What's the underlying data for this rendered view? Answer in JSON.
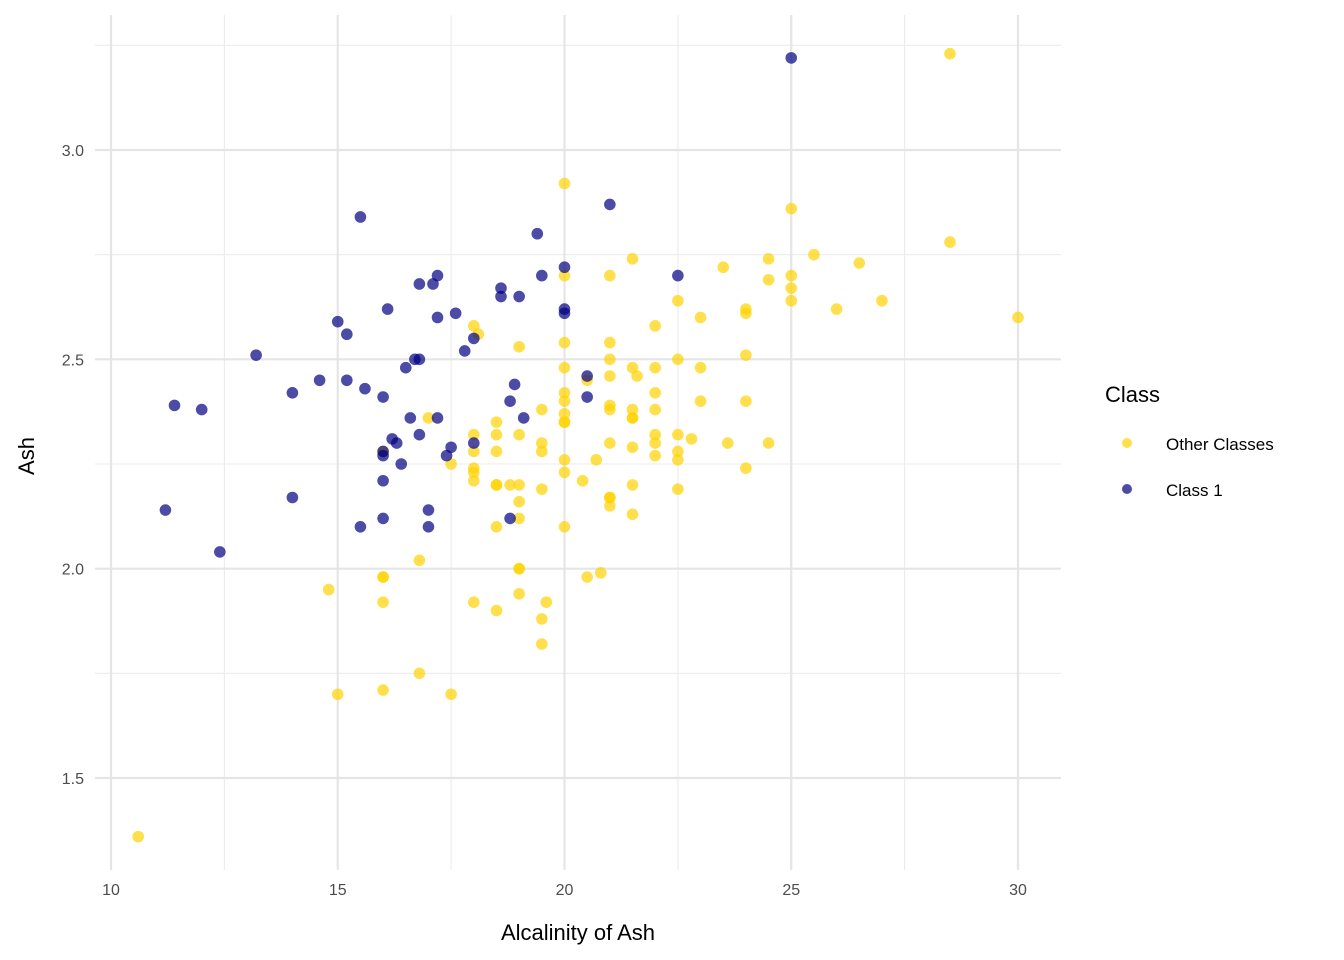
{
  "chart_data": {
    "type": "scatter",
    "title": "",
    "xlabel": "Alcalinity of Ash",
    "ylabel": "Ash",
    "xlim": [
      9.5,
      31
    ],
    "ylim": [
      1.27,
      3.32
    ],
    "x_ticks": [
      10,
      15,
      20,
      25,
      30
    ],
    "x_tick_labels": [
      "10",
      "15",
      "20",
      "25",
      "30"
    ],
    "y_ticks": [
      1.5,
      2.0,
      2.5,
      3.0
    ],
    "y_tick_labels": [
      "1.5",
      "2.0",
      "2.5",
      "3.0"
    ],
    "x_minor": [
      12.5,
      17.5,
      22.5,
      27.5
    ],
    "y_minor": [
      1.75,
      2.25,
      2.75,
      3.25
    ],
    "grid": true,
    "legend": {
      "title": "Class",
      "position": "right",
      "entries": [
        {
          "label": "Other Classes",
          "color": "#FFD300"
        },
        {
          "label": "Class 1",
          "color": "#000080"
        }
      ]
    },
    "series": [
      {
        "name": "Other Classes",
        "color": "#FFD300",
        "points": [
          [
            10.6,
            1.36
          ],
          [
            14.8,
            1.95
          ],
          [
            15.0,
            1.7
          ],
          [
            16.0,
            1.98
          ],
          [
            16.0,
            1.98
          ],
          [
            16.0,
            1.92
          ],
          [
            16.0,
            1.71
          ],
          [
            16.0,
            2.28
          ],
          [
            16.8,
            2.02
          ],
          [
            16.8,
            1.75
          ],
          [
            17.0,
            2.36
          ],
          [
            17.5,
            2.25
          ],
          [
            17.5,
            1.7
          ],
          [
            18.0,
            2.58
          ],
          [
            18.1,
            2.56
          ],
          [
            18.0,
            2.32
          ],
          [
            18.0,
            2.28
          ],
          [
            18.0,
            2.24
          ],
          [
            18.0,
            2.23
          ],
          [
            18.0,
            2.21
          ],
          [
            18.0,
            1.92
          ],
          [
            18.5,
            2.35
          ],
          [
            18.5,
            2.32
          ],
          [
            18.5,
            2.28
          ],
          [
            18.5,
            2.2
          ],
          [
            18.5,
            2.2
          ],
          [
            18.5,
            2.1
          ],
          [
            18.5,
            1.9
          ],
          [
            18.8,
            2.2
          ],
          [
            19.0,
            2.53
          ],
          [
            19.0,
            2.32
          ],
          [
            19.0,
            2.2
          ],
          [
            19.0,
            2.16
          ],
          [
            19.0,
            2.12
          ],
          [
            19.0,
            2.0
          ],
          [
            19.0,
            2.0
          ],
          [
            19.0,
            1.94
          ],
          [
            19.5,
            2.38
          ],
          [
            19.5,
            2.3
          ],
          [
            19.5,
            2.28
          ],
          [
            19.5,
            2.19
          ],
          [
            19.5,
            1.88
          ],
          [
            19.5,
            1.82
          ],
          [
            19.6,
            1.92
          ],
          [
            20.0,
            2.92
          ],
          [
            20.0,
            2.7
          ],
          [
            20.0,
            2.54
          ],
          [
            20.0,
            2.48
          ],
          [
            20.0,
            2.42
          ],
          [
            20.0,
            2.4
          ],
          [
            20.0,
            2.37
          ],
          [
            20.0,
            2.35
          ],
          [
            20.0,
            2.35
          ],
          [
            20.0,
            2.26
          ],
          [
            20.0,
            2.23
          ],
          [
            20.0,
            2.1
          ],
          [
            20.4,
            2.21
          ],
          [
            20.5,
            2.45
          ],
          [
            20.5,
            1.98
          ],
          [
            20.8,
            1.99
          ],
          [
            20.7,
            2.26
          ],
          [
            21.0,
            2.7
          ],
          [
            21.0,
            2.54
          ],
          [
            21.0,
            2.5
          ],
          [
            21.0,
            2.46
          ],
          [
            21.0,
            2.39
          ],
          [
            21.0,
            2.38
          ],
          [
            21.0,
            2.3
          ],
          [
            21.0,
            2.17
          ],
          [
            21.0,
            2.17
          ],
          [
            21.0,
            2.15
          ],
          [
            21.5,
            2.74
          ],
          [
            21.5,
            2.48
          ],
          [
            21.5,
            2.38
          ],
          [
            21.5,
            2.36
          ],
          [
            21.5,
            2.36
          ],
          [
            21.5,
            2.29
          ],
          [
            21.5,
            2.2
          ],
          [
            21.5,
            2.13
          ],
          [
            21.6,
            2.46
          ],
          [
            22.0,
            2.58
          ],
          [
            22.0,
            2.48
          ],
          [
            22.0,
            2.42
          ],
          [
            22.0,
            2.38
          ],
          [
            22.0,
            2.32
          ],
          [
            22.0,
            2.3
          ],
          [
            22.0,
            2.27
          ],
          [
            22.5,
            2.64
          ],
          [
            22.5,
            2.5
          ],
          [
            22.5,
            2.32
          ],
          [
            22.5,
            2.28
          ],
          [
            22.5,
            2.26
          ],
          [
            22.5,
            2.19
          ],
          [
            22.8,
            2.31
          ],
          [
            23.0,
            2.6
          ],
          [
            23.0,
            2.48
          ],
          [
            23.0,
            2.4
          ],
          [
            23.5,
            2.72
          ],
          [
            23.6,
            2.3
          ],
          [
            24.0,
            2.62
          ],
          [
            24.0,
            2.61
          ],
          [
            24.0,
            2.51
          ],
          [
            24.0,
            2.4
          ],
          [
            24.0,
            2.24
          ],
          [
            24.5,
            2.74
          ],
          [
            24.5,
            2.69
          ],
          [
            24.5,
            2.3
          ],
          [
            25.0,
            2.86
          ],
          [
            25.0,
            2.7
          ],
          [
            25.0,
            2.67
          ],
          [
            25.0,
            2.64
          ],
          [
            25.5,
            2.75
          ],
          [
            26.0,
            2.62
          ],
          [
            26.5,
            2.73
          ],
          [
            27.0,
            2.64
          ],
          [
            28.5,
            3.23
          ],
          [
            28.5,
            2.78
          ],
          [
            30.0,
            2.6
          ]
        ]
      },
      {
        "name": "Class 1",
        "color": "#000080",
        "points": [
          [
            11.2,
            2.14
          ],
          [
            11.4,
            2.39
          ],
          [
            12.0,
            2.38
          ],
          [
            12.4,
            2.04
          ],
          [
            13.2,
            2.51
          ],
          [
            14.0,
            2.42
          ],
          [
            14.0,
            2.17
          ],
          [
            14.6,
            2.45
          ],
          [
            15.0,
            2.59
          ],
          [
            15.2,
            2.56
          ],
          [
            15.2,
            2.45
          ],
          [
            15.5,
            2.84
          ],
          [
            15.5,
            2.1
          ],
          [
            15.6,
            2.43
          ],
          [
            16.0,
            2.41
          ],
          [
            16.0,
            2.28
          ],
          [
            16.0,
            2.27
          ],
          [
            16.0,
            2.21
          ],
          [
            16.0,
            2.12
          ],
          [
            16.1,
            2.62
          ],
          [
            16.2,
            2.31
          ],
          [
            16.3,
            2.3
          ],
          [
            16.4,
            2.25
          ],
          [
            16.5,
            2.48
          ],
          [
            16.6,
            2.36
          ],
          [
            16.7,
            2.5
          ],
          [
            16.8,
            2.5
          ],
          [
            16.8,
            2.68
          ],
          [
            16.8,
            2.32
          ],
          [
            17.0,
            2.14
          ],
          [
            17.0,
            2.1
          ],
          [
            17.1,
            2.68
          ],
          [
            17.2,
            2.7
          ],
          [
            17.2,
            2.6
          ],
          [
            17.2,
            2.36
          ],
          [
            17.4,
            2.27
          ],
          [
            17.5,
            2.29
          ],
          [
            17.6,
            2.61
          ],
          [
            17.8,
            2.52
          ],
          [
            18.0,
            2.55
          ],
          [
            18.0,
            2.3
          ],
          [
            18.6,
            2.67
          ],
          [
            18.6,
            2.65
          ],
          [
            18.8,
            2.4
          ],
          [
            18.8,
            2.12
          ],
          [
            18.9,
            2.44
          ],
          [
            19.0,
            2.65
          ],
          [
            19.1,
            2.36
          ],
          [
            19.4,
            2.8
          ],
          [
            19.5,
            2.7
          ],
          [
            20.0,
            2.72
          ],
          [
            20.0,
            2.62
          ],
          [
            20.0,
            2.61
          ],
          [
            20.5,
            2.46
          ],
          [
            20.5,
            2.41
          ],
          [
            21.0,
            2.87
          ],
          [
            22.5,
            2.7
          ],
          [
            25.0,
            3.22
          ]
        ]
      }
    ]
  }
}
